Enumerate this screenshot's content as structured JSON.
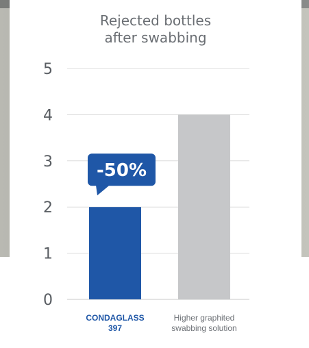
{
  "chart_data": {
    "type": "bar",
    "title_lines": [
      "Rejected bottles",
      "after swabbing"
    ],
    "categories": [
      [
        "CONDAGLASS",
        "397"
      ],
      [
        "Higher graphited",
        "swabbing solution"
      ]
    ],
    "values": [
      2,
      4
    ],
    "ylim": [
      0,
      5
    ],
    "yticks": [
      "0",
      "1",
      "2",
      "3",
      "4",
      "5"
    ],
    "grid": true,
    "annotation": {
      "text": "-50%",
      "category_index": 0
    },
    "colors": {
      "bar_highlight": "#1f57a7",
      "bar_other": "#c6c7c9",
      "grid": "#dcdcdc",
      "tick_text": "#595d62",
      "callout": "#1f57a7",
      "callout_text": "#ffffff"
    }
  }
}
